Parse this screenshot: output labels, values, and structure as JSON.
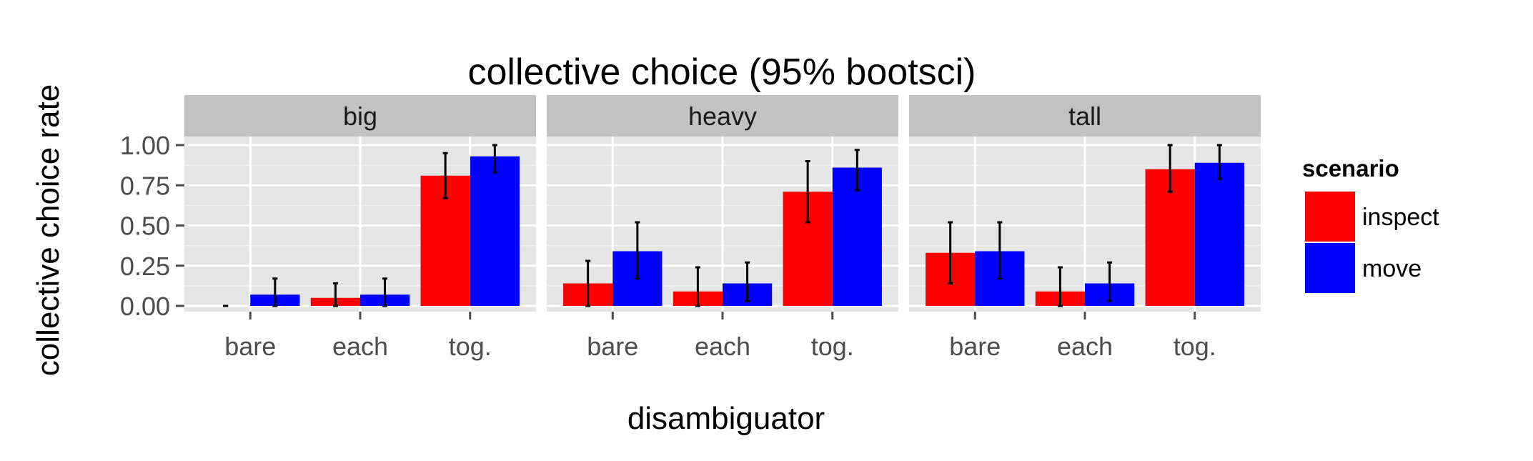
{
  "chart_data": {
    "type": "bar",
    "title": "collective choice (95% bootsci)",
    "xlabel": "disambiguator",
    "ylabel": "collective choice rate",
    "ylim": [
      0,
      1.05
    ],
    "yticks": [
      "0.00",
      "0.25",
      "0.50",
      "0.75",
      "1.00"
    ],
    "ytick_values": [
      0,
      0.25,
      0.5,
      0.75,
      1.0
    ],
    "categories": [
      "bare",
      "each",
      "tog."
    ],
    "grid": true,
    "legend": {
      "title": "scenario",
      "position": "right",
      "entries": [
        {
          "name": "inspect",
          "color": "#ff0000"
        },
        {
          "name": "move",
          "color": "#0000ff"
        }
      ]
    },
    "facets": [
      {
        "label": "big",
        "series": [
          {
            "name": "inspect",
            "values": [
              0.0,
              0.05,
              0.81
            ],
            "ci_low": [
              0.0,
              0.0,
              0.67
            ],
            "ci_high": [
              0.0,
              0.14,
              0.95
            ]
          },
          {
            "name": "move",
            "values": [
              0.07,
              0.07,
              0.93
            ],
            "ci_low": [
              0.0,
              0.0,
              0.83
            ],
            "ci_high": [
              0.17,
              0.17,
              1.0
            ]
          }
        ]
      },
      {
        "label": "heavy",
        "series": [
          {
            "name": "inspect",
            "values": [
              0.14,
              0.09,
              0.71
            ],
            "ci_low": [
              0.0,
              0.0,
              0.52
            ],
            "ci_high": [
              0.28,
              0.24,
              0.9
            ]
          },
          {
            "name": "move",
            "values": [
              0.34,
              0.14,
              0.86
            ],
            "ci_low": [
              0.17,
              0.03,
              0.72
            ],
            "ci_high": [
              0.52,
              0.27,
              0.97
            ]
          }
        ]
      },
      {
        "label": "tall",
        "series": [
          {
            "name": "inspect",
            "values": [
              0.33,
              0.09,
              0.85
            ],
            "ci_low": [
              0.14,
              0.0,
              0.71
            ],
            "ci_high": [
              0.52,
              0.24,
              1.0
            ]
          },
          {
            "name": "move",
            "values": [
              0.34,
              0.14,
              0.89
            ],
            "ci_low": [
              0.17,
              0.03,
              0.79
            ],
            "ci_high": [
              0.52,
              0.27,
              1.0
            ]
          }
        ]
      }
    ]
  }
}
